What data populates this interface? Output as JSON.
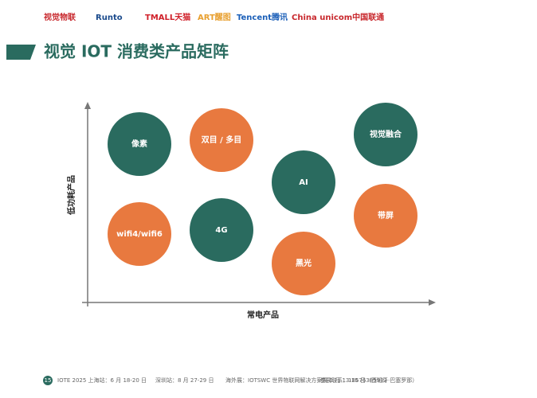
{
  "logos": [
    "视觉物联",
    "Runto",
    "TMALL天猫",
    "ART醒图",
    "Tencent腾讯",
    "China unicom中国联通"
  ],
  "title": "视觉 IOT 消费类产品矩阵",
  "y_axis_label": "低功耗产品",
  "x_axis_label": "常电产品",
  "nodes": [
    {
      "label": "像素",
      "color": "#2a6b5f"
    },
    {
      "label": "双目 / 多目",
      "color": "#e8793f"
    },
    {
      "label": "视觉融合",
      "color": "#2a6b5f"
    },
    {
      "label": "AI",
      "color": "#2a6b5f"
    },
    {
      "label": "带屏",
      "color": "#e8793f"
    },
    {
      "label": "wifi4/wifi6",
      "color": "#e8793f"
    },
    {
      "label": "4G",
      "color": "#2a6b5f"
    },
    {
      "label": "黑光",
      "color": "#e8793f"
    }
  ],
  "footer": {
    "page": "15",
    "items": [
      "IOTE 2025 上海站：6 月 18-20 日",
      "深圳站：8 月 27-29 日",
      "海外展：IOTSWC 世界物联网解决方案展 5 月 13-15 日（西班牙·巴塞罗那）",
      "参展联系：18676385933"
    ]
  }
}
